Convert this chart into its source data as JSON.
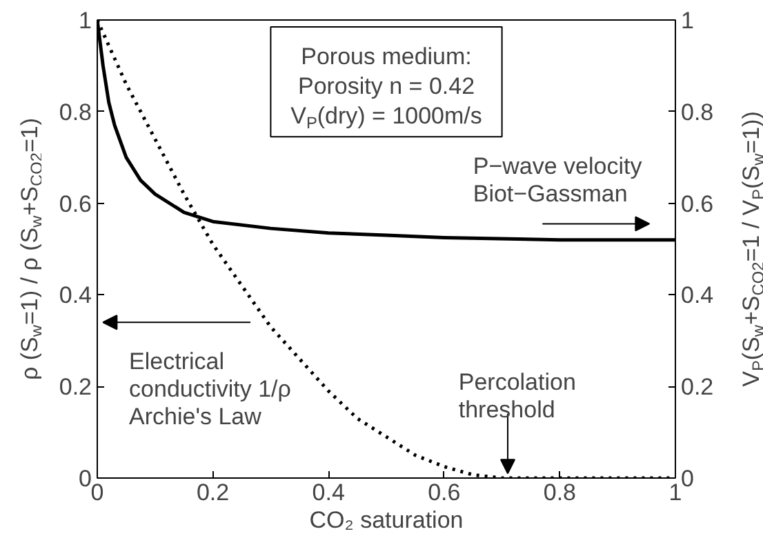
{
  "chart_data": {
    "type": "line",
    "xlabel": "CO₂ saturation",
    "ylabel": "ρ (S$_{w}$=1) / ρ (S$_{w}$+S$_{CO2}$=1)",
    "y2label": "V$_{P}$(S$_{w}$+S$_{CO2}$=1 / V$_{P}$(S$_{w}$=1))",
    "xlim": [
      0,
      1
    ],
    "xticks": [
      0,
      0.2,
      0.4,
      0.6,
      0.8,
      1
    ],
    "ylim": [
      0,
      1
    ],
    "yticks": [
      0,
      0.2,
      0.4,
      0.6,
      0.8,
      1
    ],
    "y2lim": [
      0,
      1
    ],
    "y2ticks": [
      0,
      0.2,
      0.4,
      0.6,
      0.8,
      1
    ],
    "grid": false,
    "series": [
      {
        "color": "#000000",
        "line_style": "solid",
        "x": [
          0,
          0.01,
          0.02,
          0.03,
          0.05,
          0.075,
          0.1,
          0.15,
          0.2,
          0.3,
          0.4,
          0.5,
          0.6,
          0.8,
          1
        ],
        "values": [
          1,
          0.9,
          0.82,
          0.77,
          0.7,
          0.65,
          0.62,
          0.58,
          0.56,
          0.545,
          0.535,
          0.53,
          0.525,
          0.52,
          0.52
        ]
      },
      {
        "color": "#000000",
        "line_style": "dotted",
        "x": [
          0,
          0.05,
          0.1,
          0.15,
          0.2,
          0.25,
          0.3,
          0.35,
          0.4,
          0.45,
          0.5,
          0.55,
          0.6,
          0.65,
          0.7,
          0.8,
          0.9,
          1
        ],
        "values": [
          1,
          0.86,
          0.74,
          0.62,
          0.51,
          0.42,
          0.33,
          0.26,
          0.19,
          0.13,
          0.09,
          0.05,
          0.025,
          0.007,
          0,
          0,
          0,
          0
        ]
      }
    ],
    "annotations": [
      "Porous medium:",
      "Porosity n = 0.42",
      "V$_{P}$(dry) = 1000m/s",
      "Electrical\nconductivity 1/ρ\nArchie's Law",
      "P−wave velocity\nBiot−Gassman",
      {
        "text": "Percolation\nthreshold",
        "x": 0.71,
        "y": 0.01
      }
    ]
  }
}
